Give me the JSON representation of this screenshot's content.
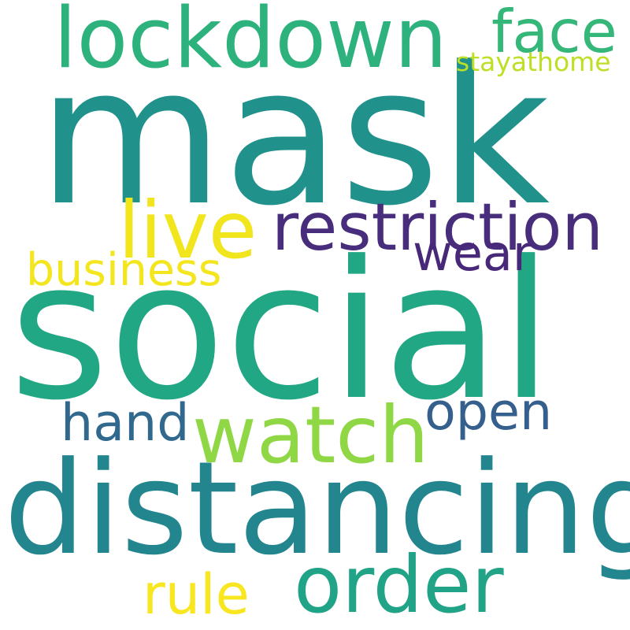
{
  "word_cloud": {
    "words": [
      {
        "id": "mask",
        "text": "mask",
        "color": "#21918c"
      },
      {
        "id": "social",
        "text": "social",
        "color": "#22a785"
      },
      {
        "id": "distancing",
        "text": "distancing",
        "color": "#23868e"
      },
      {
        "id": "lockdown",
        "text": "lockdown",
        "color": "#2db27d"
      },
      {
        "id": "restriction",
        "text": "restriction",
        "color": "#472d7b"
      },
      {
        "id": "watch",
        "text": "watch",
        "color": "#8fd744"
      },
      {
        "id": "order",
        "text": "order",
        "color": "#20a386"
      },
      {
        "id": "live",
        "text": "live",
        "color": "#f1e51d"
      },
      {
        "id": "face",
        "text": "face",
        "color": "#35b779"
      },
      {
        "id": "wear",
        "text": "wear",
        "color": "#482878"
      },
      {
        "id": "hand",
        "text": "hand",
        "color": "#31688e"
      },
      {
        "id": "open",
        "text": "open",
        "color": "#355f8d"
      },
      {
        "id": "business",
        "text": "business",
        "color": "#f4e61e"
      },
      {
        "id": "rule",
        "text": "rule",
        "color": "#f8e621"
      },
      {
        "id": "stayathome",
        "text": "stayathome",
        "color": "#bddf26"
      }
    ]
  }
}
